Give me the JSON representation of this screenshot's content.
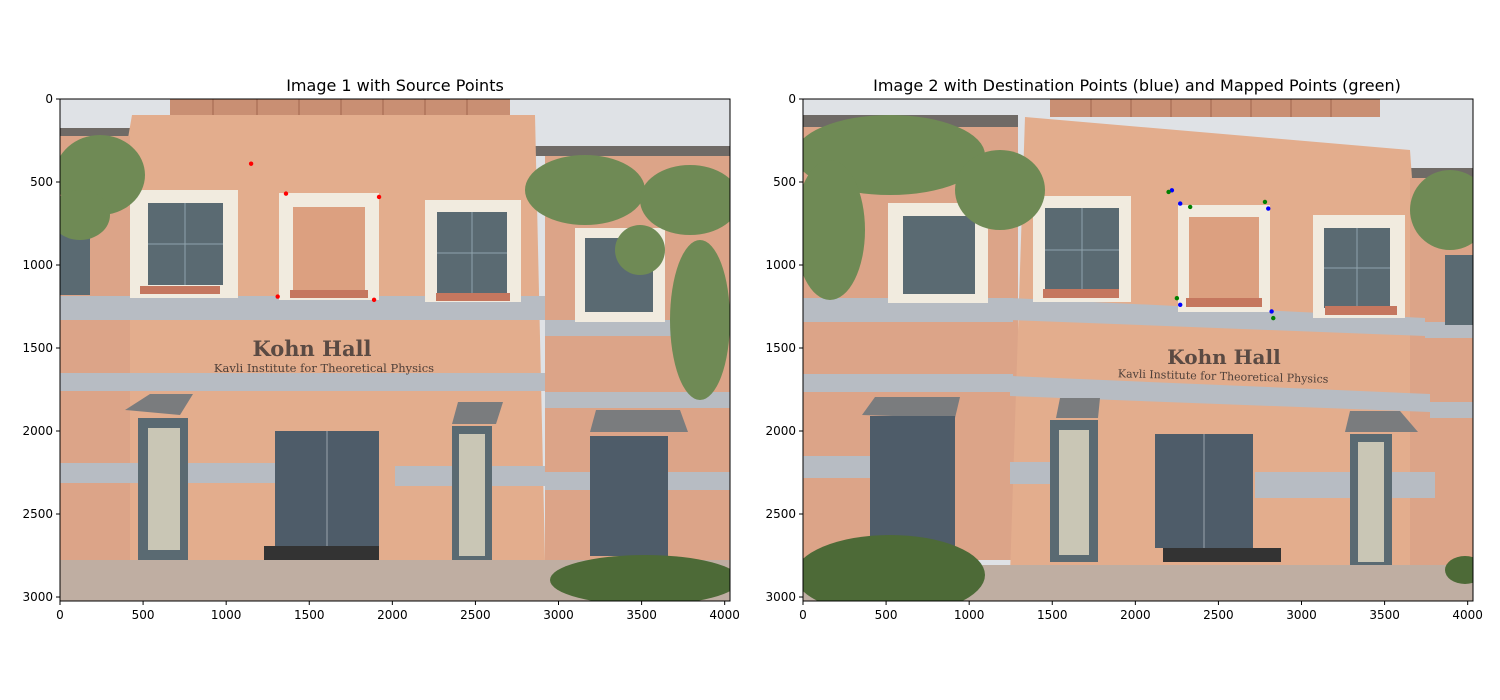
{
  "panels": [
    {
      "title": "Image 1 with Source Points",
      "sign_title": "Kohn Hall",
      "sign_subtitle": "Kavli Institute for Theoretical Physics",
      "x_ticks": [
        "0",
        "500",
        "1000",
        "1500",
        "2000",
        "2500",
        "3000",
        "3500",
        "4000"
      ],
      "y_ticks": [
        "0",
        "500",
        "1000",
        "1500",
        "2000",
        "2500",
        "3000"
      ]
    },
    {
      "title": "Image 2 with Destination Points (blue) and Mapped Points (green)",
      "sign_title": "Kohn Hall",
      "sign_subtitle": "Kavli Institute for Theoretical Physics",
      "x_ticks": [
        "0",
        "500",
        "1000",
        "1500",
        "2000",
        "2500",
        "3000",
        "3500",
        "4000"
      ],
      "y_ticks": [
        "0",
        "500",
        "1000",
        "1500",
        "2000",
        "2500",
        "3000"
      ]
    }
  ],
  "points": {
    "source": [
      [
        1150,
        390
      ],
      [
        1360,
        570
      ],
      [
        1920,
        590
      ],
      [
        1310,
        1190
      ],
      [
        1890,
        1210
      ]
    ],
    "destination": [
      [
        2220,
        550
      ],
      [
        2270,
        630
      ],
      [
        2800,
        660
      ],
      [
        2270,
        1240
      ],
      [
        2820,
        1280
      ]
    ],
    "mapped": [
      [
        2200,
        560
      ],
      [
        2330,
        650
      ],
      [
        2780,
        620
      ],
      [
        2250,
        1200
      ],
      [
        2830,
        1320
      ]
    ]
  },
  "colors": {
    "source": "#ff0000",
    "destination": "#0000ff",
    "mapped": "#008000",
    "facade": "#e3ad8d",
    "sky": "#dfe2e6",
    "frame": "#f1ebdf",
    "stripe": "#b7bcc3"
  }
}
